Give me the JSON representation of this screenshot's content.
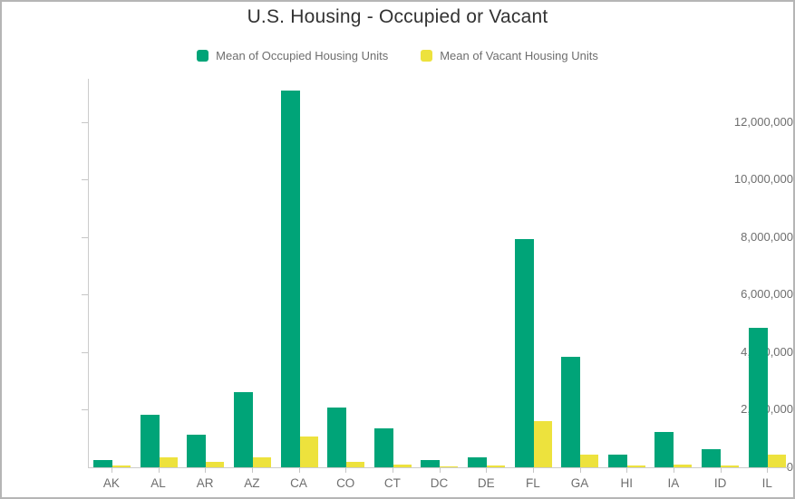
{
  "panel": {
    "background": "#ffffff",
    "border_color": "#b5b5b5",
    "title_color": "#323232",
    "label_color": "#6e6e6e",
    "axis_color": "#cccccc"
  },
  "chart_data": {
    "type": "bar",
    "title": "U.S. Housing - Occupied or Vacant",
    "xlabel": "",
    "ylabel": "",
    "grid": false,
    "legend_position": "top",
    "categories": [
      "AK",
      "AL",
      "AR",
      "AZ",
      "CA",
      "CO",
      "CT",
      "DC",
      "DE",
      "FL",
      "GA",
      "HI",
      "IA",
      "ID",
      "IL"
    ],
    "series": [
      {
        "name": "Mean of Occupied Housing Units",
        "key": "occupied",
        "color": "#00a478",
        "values": [
          250000,
          1840000,
          1140000,
          2620000,
          13100000,
          2090000,
          1360000,
          260000,
          340000,
          7920000,
          3830000,
          430000,
          1230000,
          630000,
          4840000
        ]
      },
      {
        "name": "Mean of Vacant Housing Units",
        "key": "vacant",
        "color": "#ede23d",
        "values": [
          50000,
          340000,
          180000,
          360000,
          1070000,
          190000,
          100000,
          30000,
          60000,
          1590000,
          440000,
          70000,
          100000,
          60000,
          450000
        ]
      }
    ],
    "ylim": [
      0,
      13500000
    ],
    "y_ticks": [
      {
        "value": 0,
        "label": "0"
      },
      {
        "value": 2000000,
        "label": "2,000,000"
      },
      {
        "value": 4000000,
        "label": "4,000,000"
      },
      {
        "value": 6000000,
        "label": "6,000,000"
      },
      {
        "value": 8000000,
        "label": "8,000,000"
      },
      {
        "value": 10000000,
        "label": "10,000,000"
      },
      {
        "value": 12000000,
        "label": "12,000,000"
      }
    ]
  }
}
